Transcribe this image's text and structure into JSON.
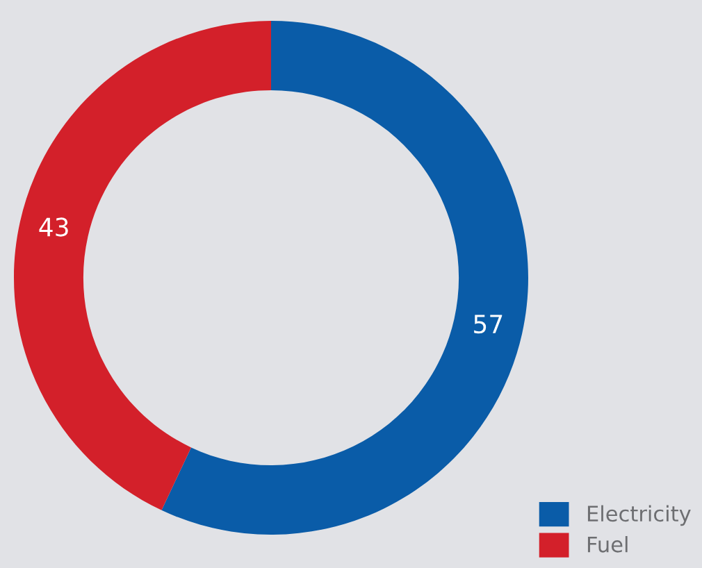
{
  "chart_data": {
    "type": "donut",
    "categories": [
      "Electricity",
      "Fuel"
    ],
    "values": [
      57,
      43
    ],
    "colors": [
      "#0a5ca8",
      "#d3202a"
    ],
    "data_labels": true,
    "legend": "bottom right"
  }
}
